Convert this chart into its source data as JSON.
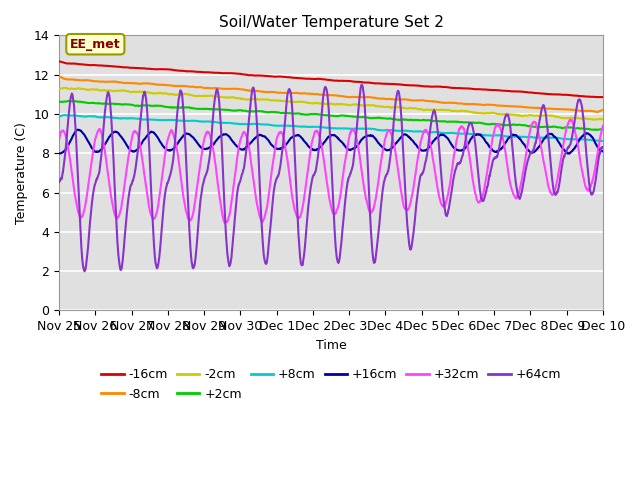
{
  "title": "Soil/Water Temperature Set 2",
  "xlabel": "Time",
  "ylabel": "Temperature (C)",
  "xlim": [
    0,
    15
  ],
  "ylim": [
    0,
    14
  ],
  "annotation_text": "EE_met",
  "xtick_labels": [
    "Nov 25",
    "Nov 26",
    "Nov 27",
    "Nov 28",
    "Nov 29",
    "Nov 30",
    "Dec 1",
    "Dec 2",
    "Dec 3",
    "Dec 4",
    "Dec 5",
    "Dec 6",
    "Dec 7",
    "Dec 8",
    "Dec 9",
    "Dec 10"
  ],
  "xtick_positions": [
    0,
    1,
    2,
    3,
    4,
    5,
    6,
    7,
    8,
    9,
    10,
    11,
    12,
    13,
    14,
    15
  ],
  "ytick_labels": [
    "0",
    "2",
    "4",
    "6",
    "8",
    "10",
    "12",
    "14"
  ],
  "ytick_positions": [
    0,
    2,
    4,
    6,
    8,
    10,
    12,
    14
  ],
  "series": [
    {
      "label": "-16cm",
      "color": "#dd0000",
      "linewidth": 1.5
    },
    {
      "label": "-8cm",
      "color": "#ff8800",
      "linewidth": 1.5
    },
    {
      "label": "-2cm",
      "color": "#cccc00",
      "linewidth": 1.5
    },
    {
      "label": "+2cm",
      "color": "#00cc00",
      "linewidth": 1.5
    },
    {
      "label": "+8cm",
      "color": "#00cccc",
      "linewidth": 1.5
    },
    {
      "label": "+16cm",
      "color": "#0000aa",
      "linewidth": 1.5
    },
    {
      "label": "+32cm",
      "color": "#ff44ff",
      "linewidth": 1.5
    },
    {
      "label": "+64cm",
      "color": "#8833cc",
      "linewidth": 1.5
    }
  ],
  "fontsize": 9
}
